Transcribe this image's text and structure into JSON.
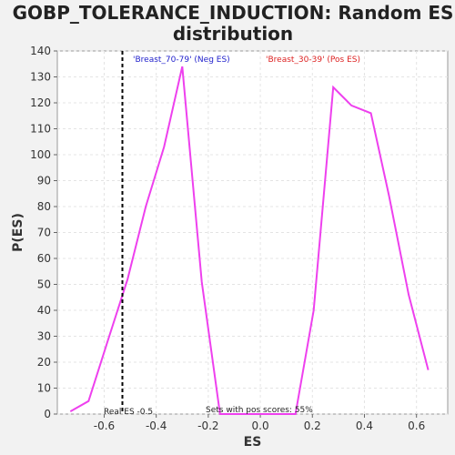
{
  "chart_data": {
    "type": "line",
    "title_line1": "GOBP_TOLERANCE_INDUCTION: Random ES",
    "title_line2": "distribution",
    "xlabel": "ES",
    "ylabel": "P(ES)",
    "xlim": [
      -0.78,
      0.72
    ],
    "ylim": [
      0,
      140
    ],
    "x_ticks": [
      -0.6,
      -0.4,
      -0.2,
      0.0,
      0.2,
      0.4,
      0.6
    ],
    "x_tick_labels": [
      "-0.6",
      "-0.4",
      "-0.2",
      "0.0",
      "0.2",
      "0.4",
      "0.6"
    ],
    "y_ticks": [
      0,
      10,
      20,
      30,
      40,
      50,
      60,
      70,
      80,
      90,
      100,
      110,
      120,
      130,
      140
    ],
    "y_tick_labels": [
      "0",
      "10",
      "20",
      "30",
      "40",
      "50",
      "60",
      "70",
      "80",
      "90",
      "100",
      "110",
      "120",
      "130",
      "140"
    ],
    "grid": true,
    "series": [
      {
        "color": "#ee40ee",
        "x": [
          -0.73,
          -0.66,
          -0.59,
          -0.51,
          -0.44,
          -0.37,
          -0.3,
          -0.225,
          -0.155,
          0.135,
          0.205,
          0.28,
          0.35,
          0.425,
          0.495,
          0.57,
          0.645
        ],
        "y": [
          1,
          5,
          27,
          52,
          80,
          103,
          134,
          51,
          0,
          0,
          40,
          126,
          119,
          116,
          84,
          46,
          17
        ]
      }
    ],
    "real_es": {
      "x": -0.53,
      "label": "Real ES -0.5",
      "color": "#000000"
    },
    "annotations": {
      "neg_label": "'Breast_70-79' (Neg ES)",
      "neg_color": "#2222cc",
      "pos_label": "'Breast_30-39' (Pos ES)",
      "pos_color": "#dd2222",
      "pos_scores": "Sets with pos scores: 55%"
    }
  }
}
